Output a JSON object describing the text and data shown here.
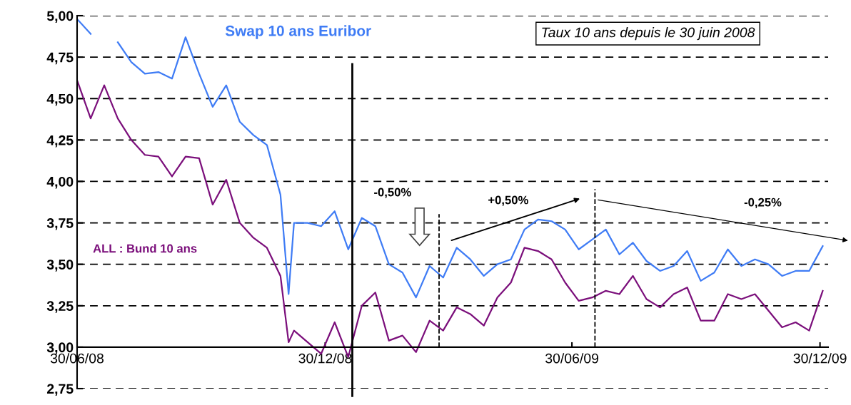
{
  "chart_data": {
    "type": "line",
    "title": "Taux 10 ans depuis le 30 juin 2008",
    "x": [
      "2008-06-30",
      "2008-07-10",
      "2008-07-20",
      "2008-07-30",
      "2008-08-09",
      "2008-08-19",
      "2008-08-29",
      "2008-09-08",
      "2008-09-18",
      "2008-09-28",
      "2008-10-08",
      "2008-10-18",
      "2008-10-28",
      "2008-11-07",
      "2008-11-17",
      "2008-11-27",
      "2008-12-03",
      "2008-12-07",
      "2008-12-17",
      "2008-12-27",
      "2009-01-06",
      "2009-01-16",
      "2009-01-26",
      "2009-02-05",
      "2009-02-15",
      "2009-02-25",
      "2009-03-07",
      "2009-03-17",
      "2009-03-27",
      "2009-04-06",
      "2009-04-16",
      "2009-04-26",
      "2009-05-06",
      "2009-05-16",
      "2009-05-26",
      "2009-06-05",
      "2009-06-15",
      "2009-06-25",
      "2009-07-05",
      "2009-07-15",
      "2009-07-25",
      "2009-08-04",
      "2009-08-14",
      "2009-08-24",
      "2009-09-03",
      "2009-09-13",
      "2009-09-23",
      "2009-10-03",
      "2009-10-13",
      "2009-10-23",
      "2009-11-02",
      "2009-11-12",
      "2009-11-22",
      "2009-12-02",
      "2009-12-12",
      "2009-12-22",
      "2010-01-01"
    ],
    "series": [
      {
        "name": "Swap 10 ans Euribor",
        "color": "#3f7cf5",
        "values": [
          4.98,
          4.89,
          null,
          4.84,
          4.72,
          4.65,
          4.66,
          4.62,
          4.87,
          4.65,
          4.45,
          4.58,
          4.36,
          4.28,
          4.22,
          3.92,
          3.32,
          3.75,
          3.75,
          3.73,
          3.82,
          3.59,
          3.78,
          3.73,
          3.5,
          3.45,
          3.3,
          3.49,
          3.42,
          3.6,
          3.53,
          3.43,
          3.5,
          3.53,
          3.71,
          3.77,
          3.76,
          3.71,
          3.59,
          3.65,
          3.71,
          3.56,
          3.63,
          3.52,
          3.46,
          3.49,
          3.58,
          3.4,
          3.45,
          3.59,
          3.49,
          3.53,
          3.5,
          3.43,
          3.46,
          3.46,
          3.61
        ]
      },
      {
        "name": "ALL : Bund 10 ans",
        "color": "#7b0f7b",
        "values": [
          4.61,
          4.38,
          4.58,
          4.38,
          4.25,
          4.16,
          4.15,
          4.03,
          4.15,
          4.14,
          3.86,
          4.01,
          3.75,
          3.66,
          3.6,
          3.43,
          3.03,
          3.1,
          3.03,
          2.96,
          3.15,
          2.94,
          3.25,
          3.33,
          3.04,
          3.07,
          2.97,
          3.16,
          3.1,
          3.24,
          3.2,
          3.13,
          3.3,
          3.39,
          3.6,
          3.58,
          3.53,
          3.39,
          3.28,
          3.3,
          3.34,
          3.32,
          3.43,
          3.29,
          3.24,
          3.32,
          3.36,
          3.16,
          3.16,
          3.32,
          3.29,
          3.32,
          3.22,
          3.12,
          3.15,
          3.1,
          3.34
        ]
      }
    ],
    "xlim": [
      "2008-06-30",
      "2010-01-05"
    ],
    "xticks": [
      {
        "value": "2008-06-30",
        "label": "30/06/08"
      },
      {
        "value": "2008-12-30",
        "label": "30/12/08"
      },
      {
        "value": "2009-06-30",
        "label": "30/06/09"
      },
      {
        "value": "2009-12-30",
        "label": "30/12/09"
      }
    ],
    "ylim": [
      2.75,
      5.0
    ],
    "yticks": [
      {
        "value": 2.75,
        "label": "2,75"
      },
      {
        "value": 3.0,
        "label": "3,00"
      },
      {
        "value": 3.25,
        "label": "3,25"
      },
      {
        "value": 3.5,
        "label": "3,50"
      },
      {
        "value": 3.75,
        "label": "3,75"
      },
      {
        "value": 4.0,
        "label": "4,00"
      },
      {
        "value": 4.25,
        "label": "4,25"
      },
      {
        "value": 4.5,
        "label": "4,50"
      },
      {
        "value": 4.75,
        "label": "4,75"
      },
      {
        "value": 5.0,
        "label": "5,00"
      }
    ],
    "ref_lines": [
      {
        "axis": "x",
        "value": "2009-01-19",
        "color": "#000000",
        "line_style": "solid"
      },
      {
        "axis": "x",
        "value": "2009-03-24",
        "color": "#000000",
        "line_style": "dashed"
      },
      {
        "axis": "x",
        "value": "2009-07-17",
        "color": "#000000",
        "line_style": "dashed"
      }
    ],
    "annotations": [
      "-0,50%",
      "+0,50%",
      "-0,25%"
    ],
    "grid": "y",
    "legend": false,
    "marker": "none",
    "line_style": "solid"
  }
}
